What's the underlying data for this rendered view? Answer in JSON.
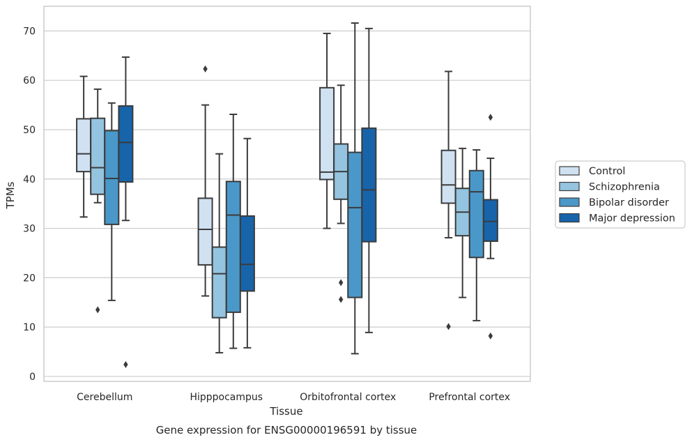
{
  "caption": "Gene expression for ENSG00000196591 by tissue",
  "chart_data": {
    "type": "boxplot",
    "title": "",
    "xlabel": "Tissue",
    "ylabel": "TPMs",
    "ylim": [
      -1,
      75
    ],
    "yticks": [
      0,
      10,
      20,
      30,
      40,
      50,
      60,
      70
    ],
    "grid": "horizontal",
    "legend_position": "right",
    "categories": [
      "Cerebellum",
      "Hipppocampus",
      "Orbitofrontal cortex",
      "Prefrontal cortex"
    ],
    "series": [
      {
        "name": "Control",
        "color": "#d0e1f2",
        "boxes": [
          {
            "whislo": 32.3,
            "q1": 41.5,
            "med": 45.1,
            "q3": 52.2,
            "whishi": 60.8,
            "fliers": []
          },
          {
            "whislo": 16.3,
            "q1": 22.6,
            "med": 29.8,
            "q3": 36.1,
            "whishi": 55.0,
            "fliers": [
              62.3
            ]
          },
          {
            "whislo": 30.0,
            "q1": 39.9,
            "med": 41.4,
            "q3": 58.5,
            "whishi": 69.5,
            "fliers": []
          },
          {
            "whislo": 28.1,
            "q1": 35.1,
            "med": 38.8,
            "q3": 45.8,
            "whishi": 61.8,
            "fliers": [
              10.1
            ]
          }
        ]
      },
      {
        "name": "Schizophrenia",
        "color": "#94c4df",
        "boxes": [
          {
            "whislo": 35.2,
            "q1": 36.9,
            "med": 42.3,
            "q3": 52.3,
            "whishi": 58.2,
            "fliers": [
              13.5
            ]
          },
          {
            "whislo": 4.8,
            "q1": 11.9,
            "med": 20.8,
            "q3": 26.2,
            "whishi": 45.1,
            "fliers": []
          },
          {
            "whislo": 31.0,
            "q1": 35.9,
            "med": 41.5,
            "q3": 47.1,
            "whishi": 59.0,
            "fliers": [
              19.0,
              15.6
            ]
          },
          {
            "whislo": 16.0,
            "q1": 28.5,
            "med": 33.3,
            "q3": 38.1,
            "whishi": 46.2,
            "fliers": []
          }
        ]
      },
      {
        "name": "Bipolar disorder",
        "color": "#4a98c9",
        "boxes": [
          {
            "whislo": 15.4,
            "q1": 30.8,
            "med": 40.1,
            "q3": 49.8,
            "whishi": 55.4,
            "fliers": []
          },
          {
            "whislo": 5.7,
            "q1": 13.0,
            "med": 32.7,
            "q3": 39.5,
            "whishi": 53.1,
            "fliers": []
          },
          {
            "whislo": 4.6,
            "q1": 16.0,
            "med": 34.2,
            "q3": 45.4,
            "whishi": 71.6,
            "fliers": []
          },
          {
            "whislo": 11.3,
            "q1": 24.1,
            "med": 37.4,
            "q3": 41.7,
            "whishi": 45.9,
            "fliers": []
          }
        ]
      },
      {
        "name": "Major depression",
        "color": "#1764ab",
        "boxes": [
          {
            "whislo": 31.6,
            "q1": 39.4,
            "med": 47.4,
            "q3": 54.8,
            "whishi": 64.7,
            "fliers": [
              2.4
            ]
          },
          {
            "whislo": 5.8,
            "q1": 17.3,
            "med": 22.7,
            "q3": 32.5,
            "whishi": 48.2,
            "fliers": []
          },
          {
            "whislo": 8.9,
            "q1": 27.3,
            "med": 37.8,
            "q3": 50.3,
            "whishi": 70.5,
            "fliers": []
          },
          {
            "whislo": 23.9,
            "q1": 27.4,
            "med": 31.4,
            "q3": 35.8,
            "whishi": 44.2,
            "fliers": [
              52.5,
              8.2
            ]
          }
        ]
      }
    ]
  }
}
